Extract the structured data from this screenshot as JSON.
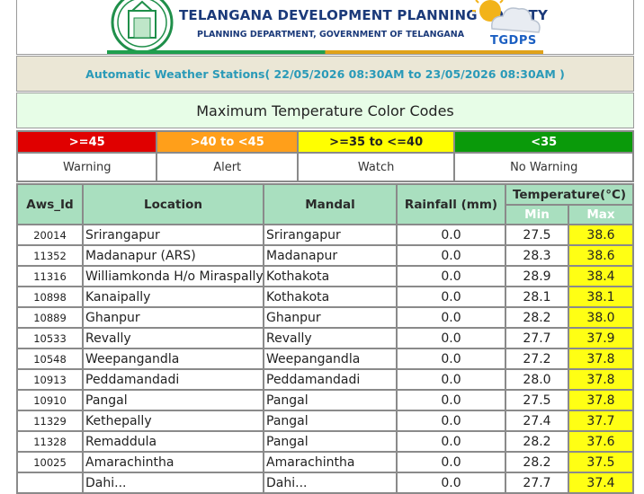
{
  "header": {
    "org_title": "TELANGANA DEVELOPMENT PLANNING SOCIETY",
    "org_subtitle": "PLANNING DEPARTMENT, GOVERNMENT OF TELANGANA",
    "logo_text": "TGDPS",
    "stations_title": "Automatic Weather Stations( 22/05/2026 08:30AM to 23/05/2026 08:30AM )",
    "color_codes_title": "Maximum Temperature Color Codes"
  },
  "legend": [
    {
      "range": ">=45",
      "label": "Warning",
      "color": "#e00000"
    },
    {
      "range": ">40 to <45",
      "label": "Alert",
      "color": "#ff9f1a"
    },
    {
      "range": ">=35 to <=40",
      "label": "Watch",
      "color": "#ffff00"
    },
    {
      "range": "<35",
      "label": "No Warning",
      "color": "#0a9a0a"
    }
  ],
  "table": {
    "headers": {
      "aws_id": "Aws_Id",
      "location": "Location",
      "mandal": "Mandal",
      "rainfall": "Rainfall (mm)",
      "temperature": "Temperature(°C)",
      "min": "Min",
      "max": "Max"
    },
    "rows": [
      {
        "id": "20014",
        "location": "Srirangapur",
        "mandal": "Srirangapur",
        "rain": "0.0",
        "min": "27.5",
        "max": "38.6"
      },
      {
        "id": "11352",
        "location": "Madanapur (ARS)",
        "mandal": "Madanapur",
        "rain": "0.0",
        "min": "28.3",
        "max": "38.6"
      },
      {
        "id": "11316",
        "location": "Williamkonda H/o Miraspally",
        "mandal": "Kothakota",
        "rain": "0.0",
        "min": "28.9",
        "max": "38.4"
      },
      {
        "id": "10898",
        "location": "Kanaipally",
        "mandal": "Kothakota",
        "rain": "0.0",
        "min": "28.1",
        "max": "38.1"
      },
      {
        "id": "10889",
        "location": "Ghanpur",
        "mandal": "Ghanpur",
        "rain": "0.0",
        "min": "28.2",
        "max": "38.0"
      },
      {
        "id": "10533",
        "location": "Revally",
        "mandal": "Revally",
        "rain": "0.0",
        "min": "27.7",
        "max": "37.9"
      },
      {
        "id": "10548",
        "location": "Weepangandla",
        "mandal": "Weepangandla",
        "rain": "0.0",
        "min": "27.2",
        "max": "37.8"
      },
      {
        "id": "10913",
        "location": "Peddamandadi",
        "mandal": "Peddamandadi",
        "rain": "0.0",
        "min": "28.0",
        "max": "37.8"
      },
      {
        "id": "10910",
        "location": "Pangal",
        "mandal": "Pangal",
        "rain": "0.0",
        "min": "27.5",
        "max": "37.8"
      },
      {
        "id": "11329",
        "location": "Kethepally",
        "mandal": "Pangal",
        "rain": "0.0",
        "min": "27.4",
        "max": "37.7"
      },
      {
        "id": "11328",
        "location": "Remaddula",
        "mandal": "Pangal",
        "rain": "0.0",
        "min": "28.2",
        "max": "37.6"
      },
      {
        "id": "10025",
        "location": "Amarachintha",
        "mandal": "Amarachintha",
        "rain": "0.0",
        "min": "28.2",
        "max": "37.5"
      },
      {
        "id": "",
        "location": "Dahi...",
        "mandal": "Dahi...",
        "rain": "0.0",
        "min": "27.7",
        "max": "37.4"
      }
    ]
  }
}
